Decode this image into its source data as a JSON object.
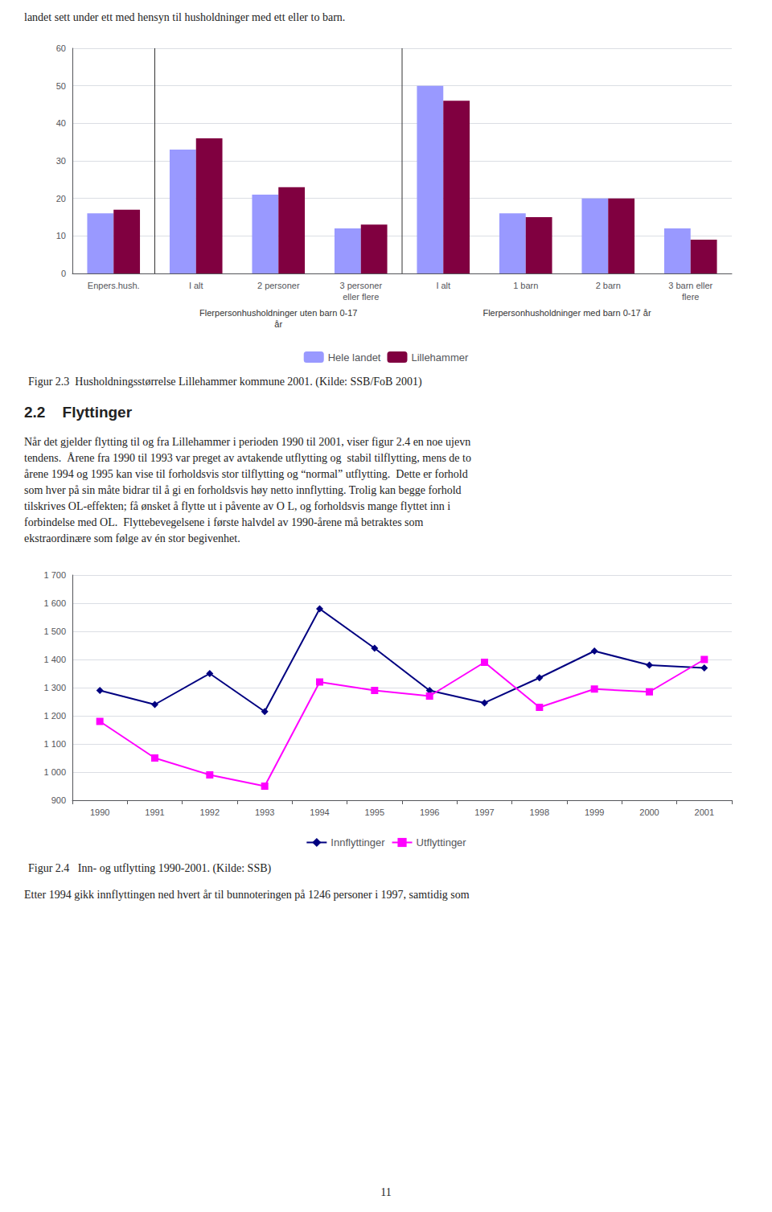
{
  "annotations": [
    "landet sett under ett med hensyn til husholdninger med ett eller to barn.",
    "2.2    Flyttinger",
    "Når det gjelder flytting til og fra Lillehammer i perioden 1990 til 2001, viser figur 2.4 en noe ujevn",
    "tendens.  Årene fra 1990 til 1993 var preget av avtakende utflytting og  stabil tilflytting, mens de to",
    "årene 1994 og 1995 kan vise til forholdsvis stor tilflytting og “normal” utflytting.  Dette er forhold",
    "som hver på sin måte bidrar til å gi en forholdsvis høy netto innflytting. Trolig kan begge forhold",
    "tilskrives OL-effekten; få ønsket å flytte ut i påvente av O L, og forholdsvis mange flyttet inn i",
    "forbindelse med OL.  Flyttebevegelsene i første halvdel av 1990-årene må betraktes som",
    "ekstraordinære som følge av én stor begivenhet.",
    "11"
  ],
  "chart_data": [
    {
      "type": "bar",
      "title": "Figur 2.3  Husholdningsstørrelse Lillehammer kommune 2001. (Kilde: SSB/FoB 2001)",
      "categories": [
        "Enpers.hush.",
        "I alt",
        "2 personer",
        "3 personer\neller flere",
        "I alt",
        "1 barn",
        "2 barn",
        "3 barn eller\nflere"
      ],
      "series": [
        {
          "name": "Hele landet",
          "color": "#9999FF",
          "values": [
            16,
            33,
            21,
            12,
            50,
            16,
            20,
            12
          ]
        },
        {
          "name": "Lillehammer",
          "color": "#800040",
          "values": [
            17,
            36,
            23,
            13,
            46,
            15,
            20,
            9
          ]
        }
      ],
      "annotations": [
        "Flerpersonhusholdninger uten barn 0-17\når",
        "Flerpersonhusholdninger med barn 0-17 år"
      ],
      "ylim": [
        0,
        60
      ],
      "yticks": [
        0,
        10,
        20,
        30,
        40,
        50,
        60
      ],
      "grid": true,
      "legend": "bottom"
    },
    {
      "type": "line",
      "title": "Figur 2.4   Inn- og utflytting 1990-2001. (Kilde: SSB)",
      "categories": [
        "1990",
        "1991",
        "1992",
        "1993",
        "1994",
        "1995",
        "1996",
        "1997",
        "1998",
        "1999",
        "2000",
        "2001"
      ],
      "series": [
        {
          "name": "Innflyttinger",
          "color": "#000080",
          "marker": "diamond",
          "values": [
            1290,
            1240,
            1350,
            1215,
            1580,
            1440,
            1290,
            1246,
            1335,
            1430,
            1380,
            1370
          ]
        },
        {
          "name": "Utflyttinger",
          "color": "#FF00FF",
          "marker": "square",
          "values": [
            1180,
            1050,
            990,
            950,
            1320,
            1290,
            1270,
            1390,
            1230,
            1295,
            1285,
            1400
          ]
        }
      ],
      "annotations": [
        "Etter 1994 gikk innflyttingen ned hvert år til bunnoteringen på 1246 personer i 1997, samtidig som"
      ],
      "ylim": [
        900,
        1700
      ],
      "yticks": [
        900,
        {
          "value": 1000,
          "label": "1 000"
        },
        {
          "value": 1100,
          "label": "1 100"
        },
        {
          "value": 1200,
          "label": "1 200"
        },
        {
          "value": 1300,
          "label": "1 300"
        },
        {
          "value": 1400,
          "label": "1 400"
        },
        {
          "value": 1500,
          "label": "1 500"
        },
        {
          "value": 1600,
          "label": "1 600"
        },
        {
          "value": 1700,
          "label": "1 700"
        }
      ],
      "grid": true,
      "legend": "bottom"
    }
  ]
}
